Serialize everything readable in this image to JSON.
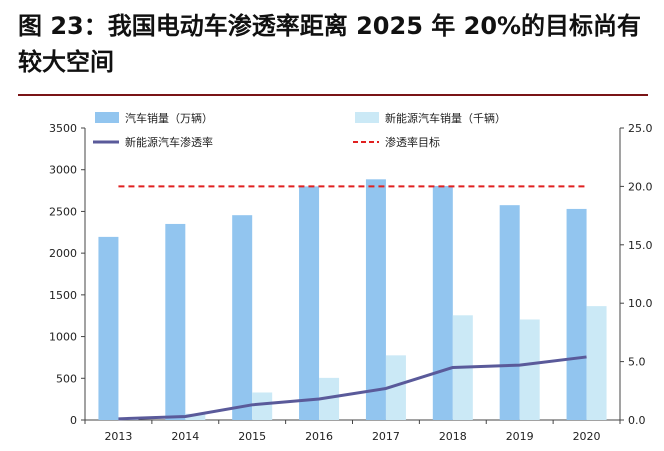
{
  "figure": {
    "title": "图 23：我国电动车渗透率距离 2025 年 20%的目标尚有较大空间"
  },
  "chart_data": {
    "type": "bar",
    "categories": [
      "2013",
      "2014",
      "2015",
      "2016",
      "2017",
      "2018",
      "2019",
      "2020"
    ],
    "series": [
      {
        "name": "汽车销量（万辆）",
        "kind": "bar",
        "axis": "left",
        "color": "#92c5ef",
        "values": [
          2195,
          2350,
          2455,
          2800,
          2885,
          2805,
          2575,
          2530
        ]
      },
      {
        "name": "新能源汽车销量（千辆）",
        "kind": "bar",
        "axis": "left",
        "color": "#cbe9f6",
        "values": [
          15,
          75,
          330,
          505,
          775,
          1255,
          1205,
          1365
        ]
      },
      {
        "name": "新能源汽车渗透率",
        "kind": "line",
        "axis": "right",
        "color": "#5a5a9a",
        "values": [
          0.1,
          0.3,
          1.3,
          1.8,
          2.7,
          4.5,
          4.7,
          5.4
        ]
      },
      {
        "name": "渗透率目标",
        "kind": "line",
        "axis": "right",
        "color": "#e02020",
        "dashed": true,
        "values": [
          20,
          20,
          20,
          20,
          20,
          20,
          20,
          20
        ]
      }
    ],
    "y_left": {
      "min": 0,
      "max": 3500,
      "ticks": [
        "0",
        "500",
        "1000",
        "1500",
        "2000",
        "2500",
        "3000",
        "3500"
      ]
    },
    "y_right": {
      "min": 0,
      "max": 25,
      "ticks": [
        "0.0",
        "5.0",
        "10.0",
        "15.0",
        "20.0",
        "25.0"
      ]
    },
    "grid": false,
    "legend_position": "top"
  }
}
